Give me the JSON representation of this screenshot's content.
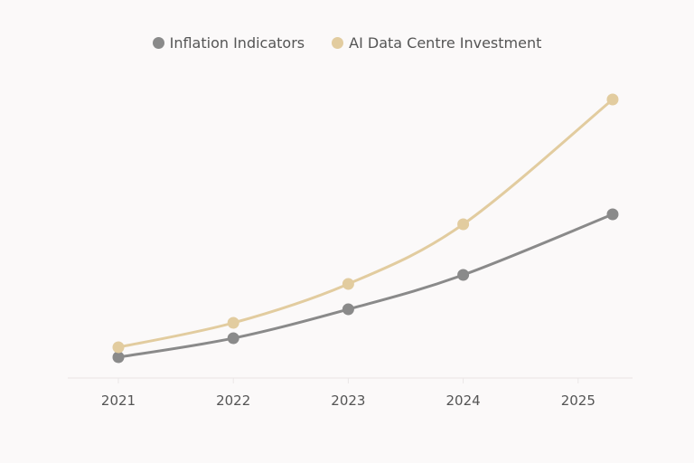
{
  "chart_data": {
    "type": "line",
    "title": "",
    "xlabel": "",
    "ylabel": "",
    "x_ticks": [
      "2021",
      "2022",
      "2023",
      "2024",
      "2025"
    ],
    "x": [
      2021,
      2022,
      2023,
      2024,
      2025.3
    ],
    "xlim": [
      2020.6,
      2025.5
    ],
    "ylim": [
      0,
      330
    ],
    "y_axis_shown": false,
    "grid": false,
    "legend_position": "top-center",
    "series": [
      {
        "name": "Inflation Indicators",
        "color": "#8a8a8a",
        "values": [
          23,
          44,
          76,
          114,
          181
        ]
      },
      {
        "name": "AI Data Centre Investment",
        "color": "#e2cc9f",
        "values": [
          34,
          61,
          104,
          170,
          308
        ]
      }
    ]
  }
}
